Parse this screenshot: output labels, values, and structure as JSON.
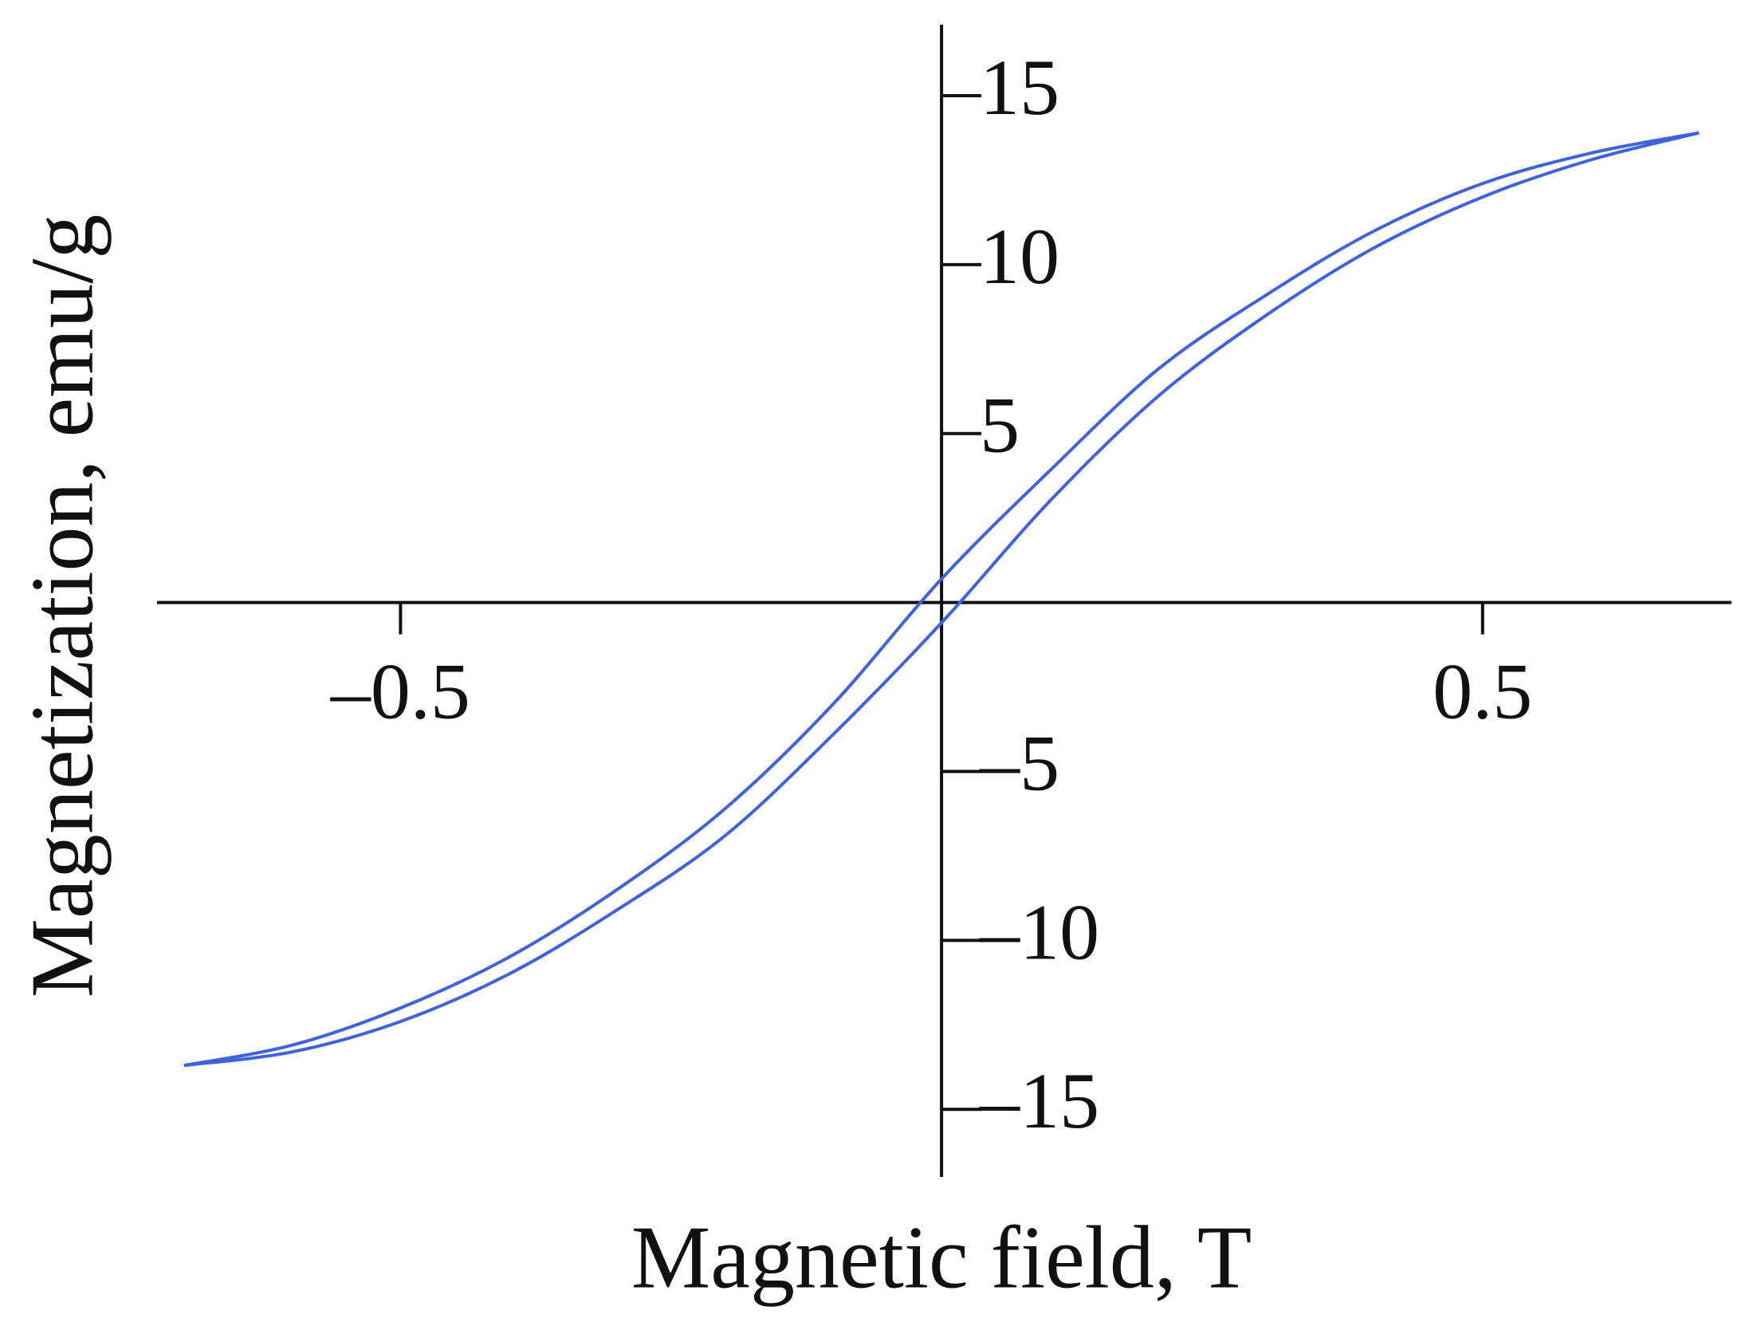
{
  "chart_data": {
    "type": "line",
    "x_label": "Magnetic field, T",
    "y_label": "Magnetization, emu/g",
    "x": [
      -0.7,
      -0.6,
      -0.5,
      -0.4,
      -0.3,
      -0.2,
      -0.1,
      0,
      0.1,
      0.2,
      0.3,
      0.4,
      0.5,
      0.6,
      0.7
    ],
    "series": [
      {
        "color": "#3f63dc",
        "values": [
          -13.7,
          -13.1,
          -12.0,
          -10.5,
          -8.5,
          -6.1,
          -3.0,
          0.7,
          3.9,
          6.9,
          9.1,
          11.0,
          12.4,
          13.3,
          13.9
        ]
      },
      {
        "color": "#3f63dc",
        "values": [
          -13.7,
          -13.3,
          -12.4,
          -11.0,
          -9.1,
          -6.9,
          -3.9,
          -0.6,
          3.0,
          6.1,
          8.5,
          10.5,
          12.0,
          13.1,
          13.9
        ]
      }
    ],
    "xlim": [
      -0.725,
      0.73
    ],
    "ylim": [
      -17,
      17.1
    ],
    "xticks": [
      {
        "value": -0.5,
        "label": "–0.5"
      },
      0.5
    ],
    "yticks": [
      15,
      10,
      5,
      {
        "value": -5,
        "label": "–5"
      },
      {
        "value": -10,
        "label": "–10"
      },
      {
        "value": -15,
        "label": "–15"
      }
    ],
    "grid": false
  }
}
